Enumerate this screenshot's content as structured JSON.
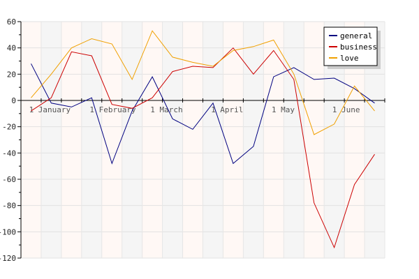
{
  "chart_data": {
    "type": "line",
    "x": [
      1,
      2,
      3,
      4,
      5,
      6,
      7,
      8,
      9,
      10,
      11,
      12,
      13,
      14,
      15,
      16,
      17,
      18
    ],
    "xticks": [
      {
        "x": 0.9,
        "label": "1 January"
      },
      {
        "x": 3.9,
        "label": "1 February"
      },
      {
        "x": 6.9,
        "label": "1 March"
      },
      {
        "x": 9.9,
        "label": "1 April"
      },
      {
        "x": 12.9,
        "label": "1 May"
      },
      {
        "x": 15.9,
        "label": "1 June"
      }
    ],
    "ylim": [
      -120,
      60
    ],
    "yticks": [
      60,
      40,
      20,
      0,
      -20,
      -40,
      -60,
      -80,
      -100,
      -120
    ],
    "xlim": [
      0.5,
      18.5
    ],
    "grid": true,
    "legend_position": "top-right",
    "series": [
      {
        "name": "general",
        "color": "#000080",
        "values": [
          28,
          -2,
          -5,
          2,
          -48,
          -8,
          18,
          -14,
          -22,
          -2,
          -48,
          -35,
          18,
          25,
          16,
          17,
          9,
          -2
        ]
      },
      {
        "name": "business",
        "color": "#cc0000",
        "values": [
          -8,
          2,
          37,
          34,
          -3,
          -6,
          2,
          22,
          26,
          25,
          40,
          20,
          38,
          16,
          -78,
          -112,
          -64,
          -41
        ]
      },
      {
        "name": "love",
        "color": "#f0a000",
        "values": [
          2,
          20,
          40,
          47,
          43,
          16,
          53,
          33,
          29,
          26,
          38,
          41,
          46,
          20,
          -26,
          -18,
          11,
          -8
        ]
      }
    ]
  }
}
